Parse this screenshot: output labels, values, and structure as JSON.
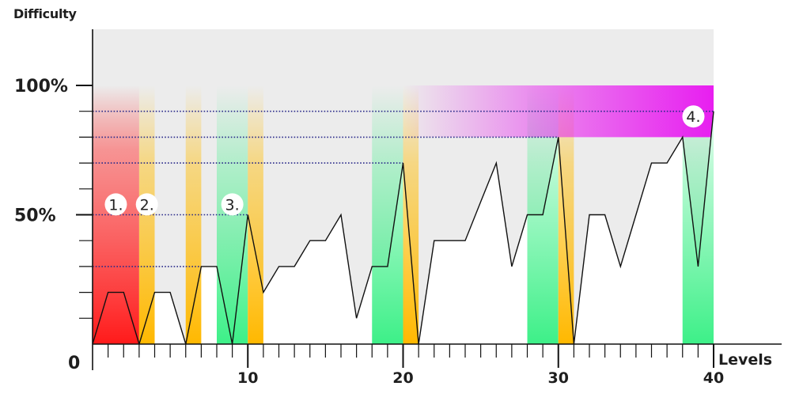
{
  "chart_data": {
    "type": "line",
    "ylabel": "Difficulty",
    "xlabel": "Levels",
    "origin_label": "0",
    "x_ticks": [
      10,
      20,
      30,
      40
    ],
    "x_tick_labels": [
      "10",
      "20",
      "30",
      "40"
    ],
    "y_ticks": [
      50,
      100
    ],
    "y_tick_labels": [
      "50%",
      "100%"
    ],
    "xlim": [
      0,
      40
    ],
    "ylim": [
      0,
      100
    ],
    "x": [
      0,
      1,
      2,
      3,
      4,
      5,
      6,
      7,
      8,
      9,
      10,
      11,
      12,
      13,
      14,
      15,
      16,
      17,
      18,
      19,
      20,
      21,
      22,
      23,
      24,
      25,
      26,
      27,
      28,
      29,
      30,
      31,
      32,
      33,
      34,
      35,
      36,
      37,
      38,
      39,
      40
    ],
    "values": [
      0,
      20,
      20,
      0,
      20,
      20,
      0,
      30,
      30,
      0,
      50,
      20,
      30,
      30,
      40,
      40,
      50,
      10,
      30,
      30,
      70,
      0,
      40,
      40,
      40,
      55,
      70,
      30,
      50,
      50,
      80,
      0,
      50,
      50,
      30,
      50,
      70,
      70,
      80,
      30,
      90
    ],
    "reference_lines": [
      30,
      50,
      70,
      80,
      90
    ],
    "colors": {
      "background": "#ececec",
      "line": "#111111",
      "red_zone": "#ff2a2a",
      "yellow_zone": "#ffc21a",
      "green_zone": "#45f08c",
      "magenta_zone": "#e81ef0",
      "dotted": "#2a2a8a"
    },
    "zones": [
      {
        "type": "red",
        "x_start": 0,
        "x_end": 3
      },
      {
        "type": "yellow",
        "x_start": 3,
        "x_end": 4
      },
      {
        "type": "yellow",
        "x_start": 6,
        "x_end": 7
      },
      {
        "type": "green",
        "x_start": 8,
        "x_end": 10
      },
      {
        "type": "yellow",
        "x_start": 10,
        "x_end": 11
      },
      {
        "type": "green",
        "x_start": 18,
        "x_end": 20
      },
      {
        "type": "yellow",
        "x_start": 20,
        "x_end": 21
      },
      {
        "type": "green",
        "x_start": 28,
        "x_end": 30
      },
      {
        "type": "yellow",
        "x_start": 30,
        "x_end": 31
      },
      {
        "type": "green",
        "x_start": 38,
        "x_end": 40
      },
      {
        "type": "magenta",
        "x_start": 20,
        "x_end": 40,
        "y_start": 80,
        "y_end": 100
      }
    ],
    "annotations": [
      {
        "label": "1.",
        "x": 1.5,
        "y": 54
      },
      {
        "label": "2.",
        "x": 3.5,
        "y": 54
      },
      {
        "label": "3.",
        "x": 9,
        "y": 54
      },
      {
        "label": "4.",
        "x": 38.7,
        "y": 88
      }
    ],
    "grid": false,
    "legend": "none"
  }
}
